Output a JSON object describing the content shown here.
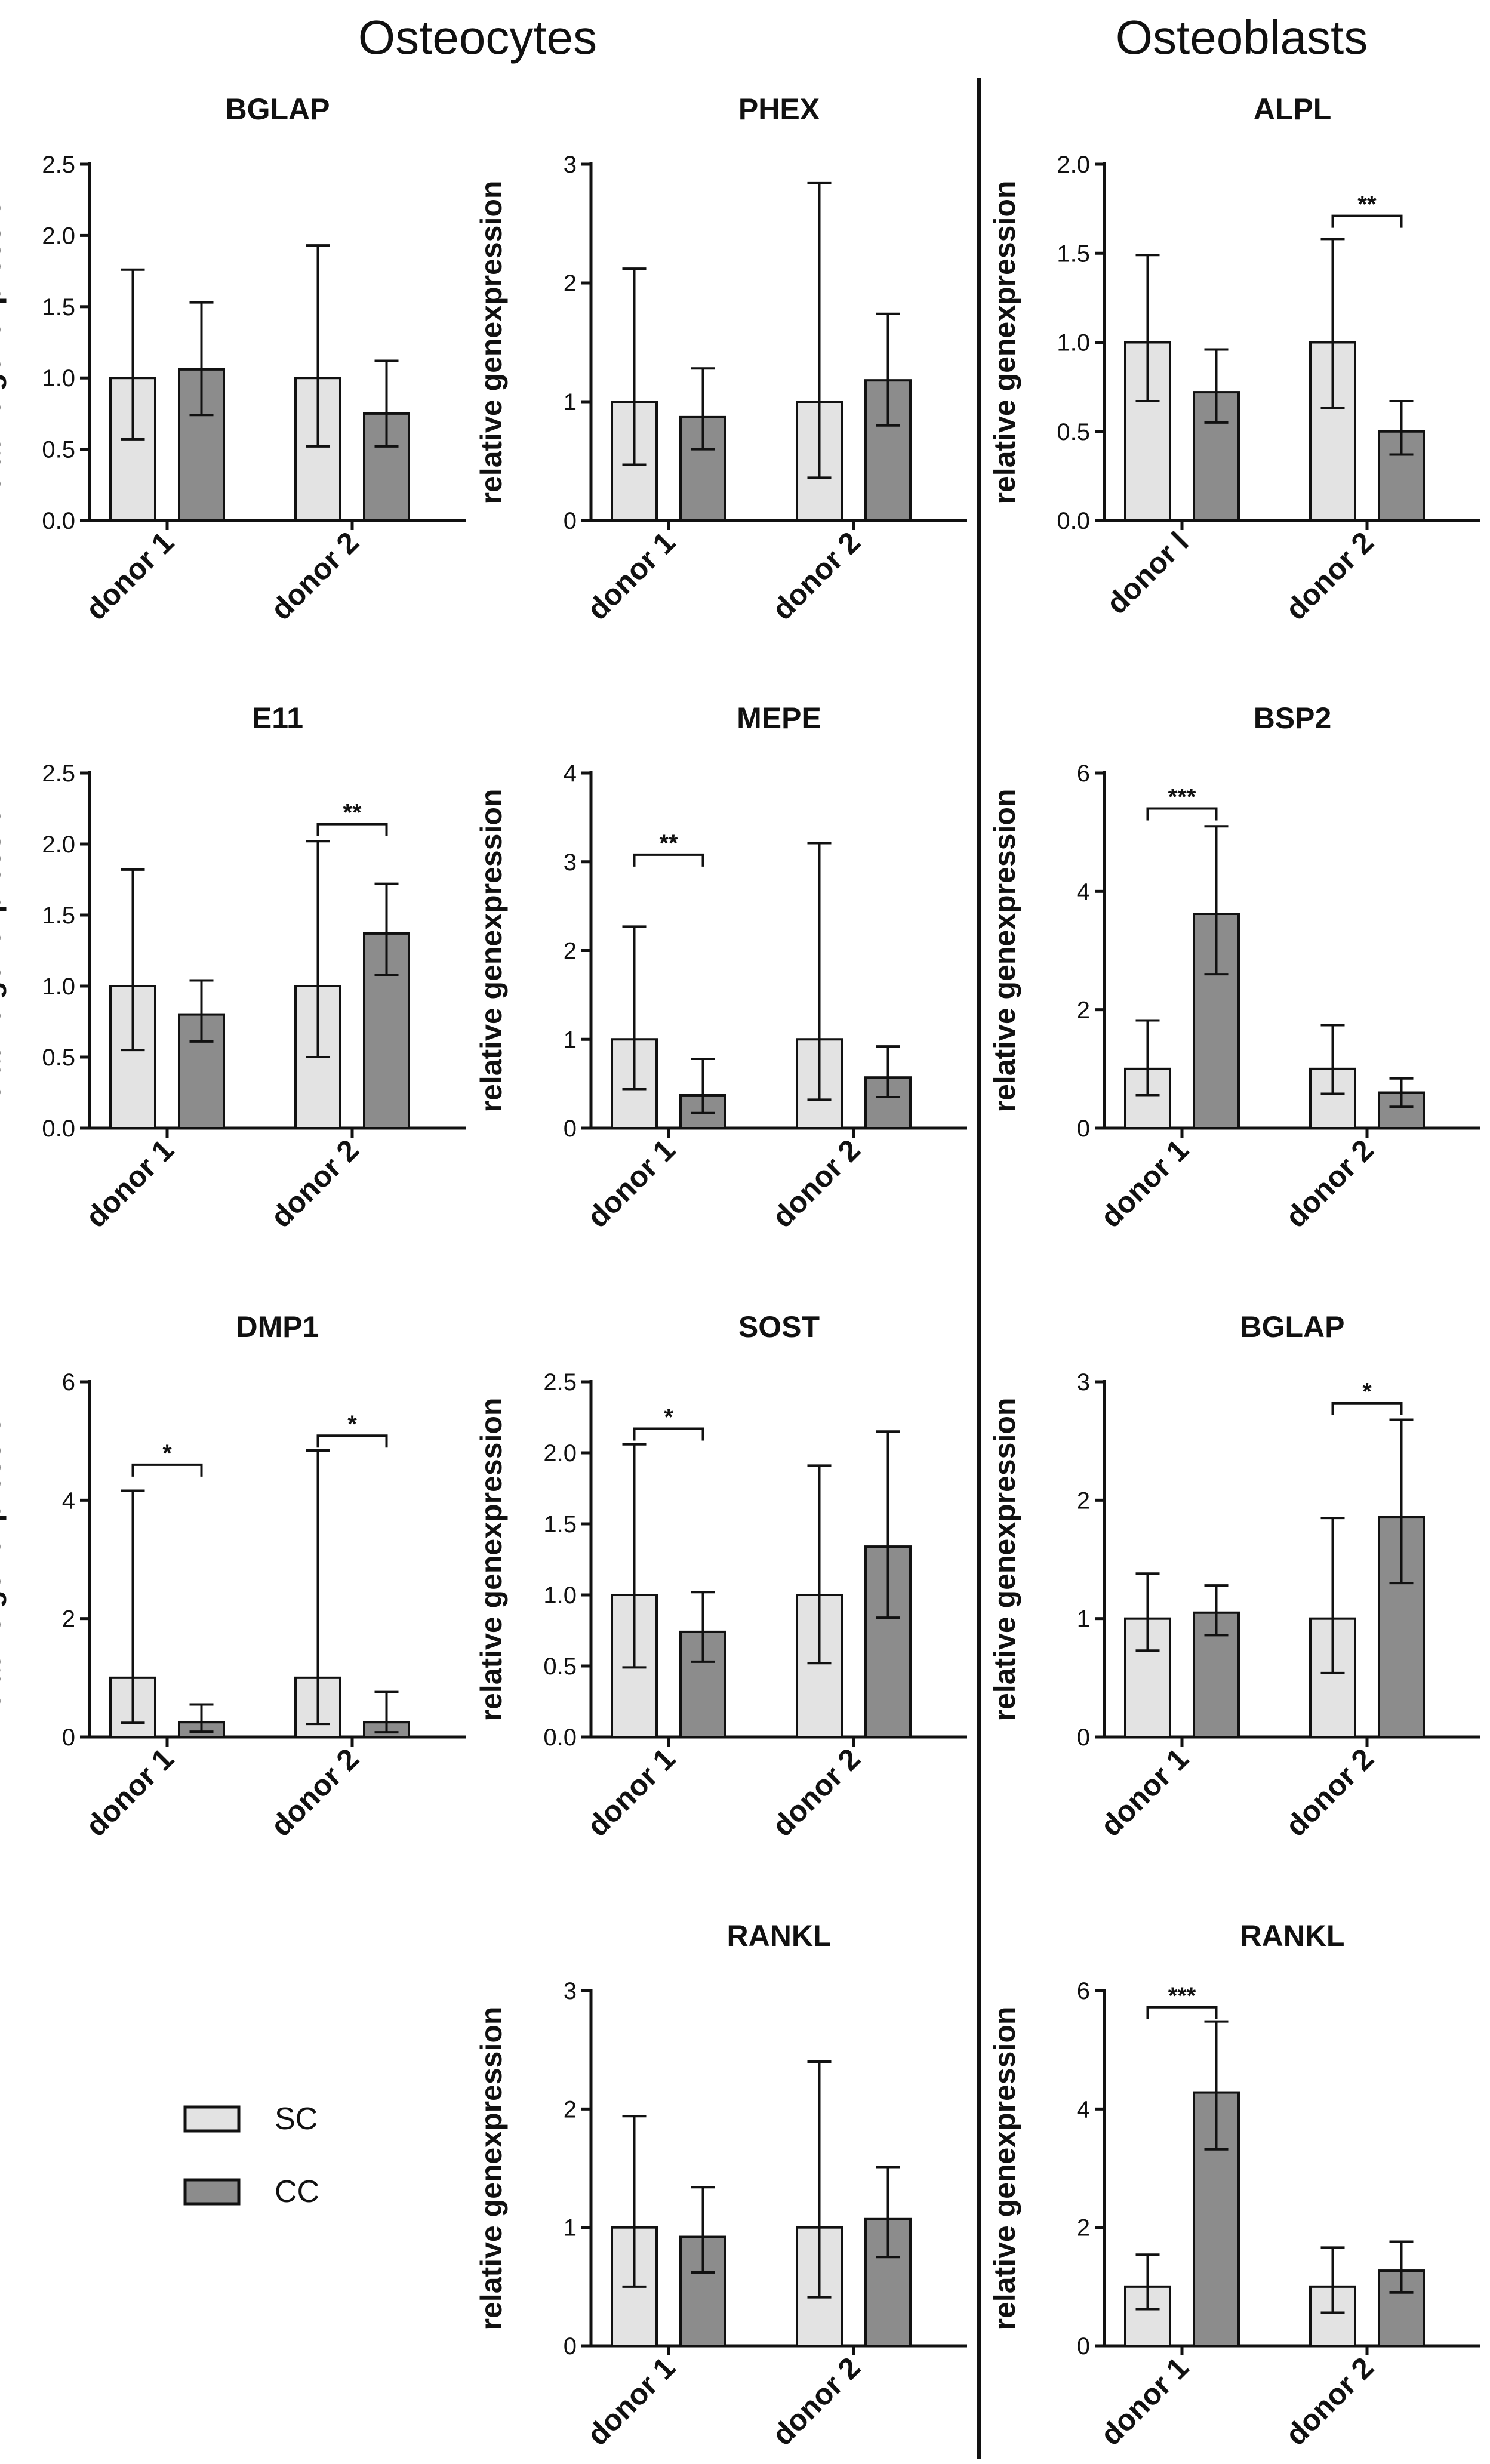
{
  "sections": {
    "left": "Osteocytes",
    "right": "Osteoblasts"
  },
  "legend": [
    {
      "label": "SC",
      "color": "#e3e3e3"
    },
    {
      "label": "CC",
      "color": "#8c8c8c"
    }
  ],
  "colors": {
    "sc": "#e3e3e3",
    "cc": "#8c8c8c",
    "stroke": "#111111"
  },
  "chart_data": [
    {
      "id": "oc-bglap",
      "type": "bar",
      "title": "BGLAP",
      "ylabel": "relative genexpression",
      "categories": [
        "donor 1",
        "donor 2"
      ],
      "ylim": [
        0,
        2.5
      ],
      "yticks": [
        "0.0",
        "0.5",
        "1.0",
        "1.5",
        "2.0",
        "2.5"
      ],
      "series": [
        {
          "name": "SC",
          "values": [
            1.0,
            1.0
          ],
          "err_low": [
            0.57,
            0.52
          ],
          "err_high": [
            1.76,
            1.93
          ]
        },
        {
          "name": "CC",
          "values": [
            1.06,
            0.75
          ],
          "err_low": [
            0.74,
            0.52
          ],
          "err_high": [
            1.53,
            1.12
          ]
        }
      ],
      "significance": []
    },
    {
      "id": "oc-phex",
      "type": "bar",
      "title": "PHEX",
      "ylabel": "relative genexpression",
      "categories": [
        "donor 1",
        "donor 2"
      ],
      "ylim": [
        0,
        3
      ],
      "yticks": [
        "0",
        "1",
        "2",
        "3"
      ],
      "series": [
        {
          "name": "SC",
          "values": [
            1.0,
            1.0
          ],
          "err_low": [
            0.47,
            0.36
          ],
          "err_high": [
            2.12,
            2.84
          ]
        },
        {
          "name": "CC",
          "values": [
            0.87,
            1.18
          ],
          "err_low": [
            0.6,
            0.8
          ],
          "err_high": [
            1.28,
            1.74
          ]
        }
      ],
      "significance": []
    },
    {
      "id": "ob-alpl",
      "type": "bar",
      "title": "ALPL",
      "ylabel": "relative genexpression",
      "categories": [
        "donor l",
        "donor 2"
      ],
      "ylim": [
        0,
        2.0
      ],
      "yticks": [
        "0.0",
        "0.5",
        "1.0",
        "1.5",
        "2.0"
      ],
      "series": [
        {
          "name": "SC",
          "values": [
            1.0,
            1.0
          ],
          "err_low": [
            0.67,
            0.63
          ],
          "err_high": [
            1.49,
            1.58
          ]
        },
        {
          "name": "CC",
          "values": [
            0.72,
            0.5
          ],
          "err_low": [
            0.55,
            0.37
          ],
          "err_high": [
            0.96,
            0.67
          ]
        }
      ],
      "significance": [
        {
          "group": 1,
          "y": 1.71,
          "label": "**"
        }
      ]
    },
    {
      "id": "oc-e11",
      "type": "bar",
      "title": "E11",
      "ylabel": "relative genexpression",
      "categories": [
        "donor 1",
        "donor 2"
      ],
      "ylim": [
        0,
        2.5
      ],
      "yticks": [
        "0.0",
        "0.5",
        "1.0",
        "1.5",
        "2.0",
        "2.5"
      ],
      "series": [
        {
          "name": "SC",
          "values": [
            1.0,
            1.0
          ],
          "err_low": [
            0.55,
            0.5
          ],
          "err_high": [
            1.82,
            2.02
          ]
        },
        {
          "name": "CC",
          "values": [
            0.8,
            1.37
          ],
          "err_low": [
            0.61,
            1.08
          ],
          "err_high": [
            1.04,
            1.72
          ]
        }
      ],
      "significance": [
        {
          "group": 1,
          "y": 2.14,
          "label": "**"
        }
      ]
    },
    {
      "id": "oc-mepe",
      "type": "bar",
      "title": "MEPE",
      "ylabel": "relative genexpression",
      "categories": [
        "donor 1",
        "donor 2"
      ],
      "ylim": [
        0,
        4
      ],
      "yticks": [
        "0",
        "1",
        "2",
        "3",
        "4"
      ],
      "series": [
        {
          "name": "SC",
          "values": [
            1.0,
            1.0
          ],
          "err_low": [
            0.44,
            0.32
          ],
          "err_high": [
            2.27,
            3.21
          ]
        },
        {
          "name": "CC",
          "values": [
            0.37,
            0.57
          ],
          "err_low": [
            0.17,
            0.35
          ],
          "err_high": [
            0.78,
            0.92
          ]
        }
      ],
      "significance": [
        {
          "group": 0,
          "y": 3.08,
          "label": "**"
        }
      ]
    },
    {
      "id": "ob-bsp2",
      "type": "bar",
      "title": "BSP2",
      "ylabel": "relative genexpression",
      "categories": [
        "donor 1",
        "donor 2"
      ],
      "ylim": [
        0,
        6
      ],
      "yticks": [
        "0",
        "2",
        "4",
        "6"
      ],
      "series": [
        {
          "name": "SC",
          "values": [
            1.0,
            1.0
          ],
          "err_low": [
            0.56,
            0.58
          ],
          "err_high": [
            1.82,
            1.74
          ]
        },
        {
          "name": "CC",
          "values": [
            3.62,
            0.6
          ],
          "err_low": [
            2.6,
            0.36
          ],
          "err_high": [
            5.1,
            0.84
          ]
        }
      ],
      "significance": [
        {
          "group": 0,
          "y": 5.4,
          "label": "***"
        }
      ]
    },
    {
      "id": "oc-dmp1",
      "type": "bar",
      "title": "DMP1",
      "ylabel": "relative genexpression",
      "categories": [
        "donor 1",
        "donor 2"
      ],
      "ylim": [
        0,
        6
      ],
      "yticks": [
        "0",
        "2",
        "4",
        "6"
      ],
      "series": [
        {
          "name": "SC",
          "values": [
            1.0,
            1.0
          ],
          "err_low": [
            0.24,
            0.22
          ],
          "err_high": [
            4.16,
            4.84
          ]
        },
        {
          "name": "CC",
          "values": [
            0.25,
            0.25
          ],
          "err_low": [
            0.09,
            0.08
          ],
          "err_high": [
            0.55,
            0.76
          ]
        }
      ],
      "significance": [
        {
          "group": 0,
          "y": 4.6,
          "label": "*"
        },
        {
          "group": 1,
          "y": 5.09,
          "label": "*"
        }
      ]
    },
    {
      "id": "oc-sost",
      "type": "bar",
      "title": "SOST",
      "ylabel": "relative genexpression",
      "categories": [
        "donor 1",
        "donor 2"
      ],
      "ylim": [
        0,
        2.5
      ],
      "yticks": [
        "0.0",
        "0.5",
        "1.0",
        "1.5",
        "2.0",
        "2.5"
      ],
      "series": [
        {
          "name": "SC",
          "values": [
            1.0,
            1.0
          ],
          "err_low": [
            0.49,
            0.52
          ],
          "err_high": [
            2.06,
            1.91
          ]
        },
        {
          "name": "CC",
          "values": [
            0.74,
            1.34
          ],
          "err_low": [
            0.53,
            0.84
          ],
          "err_high": [
            1.02,
            2.15
          ]
        }
      ],
      "significance": [
        {
          "group": 0,
          "y": 2.17,
          "label": "*"
        }
      ]
    },
    {
      "id": "ob-bglap",
      "type": "bar",
      "title": "BGLAP",
      "ylabel": "relative genexpression",
      "categories": [
        "donor 1",
        "donor 2"
      ],
      "ylim": [
        0,
        3
      ],
      "yticks": [
        "0",
        "1",
        "2",
        "3"
      ],
      "series": [
        {
          "name": "SC",
          "values": [
            1.0,
            1.0
          ],
          "err_low": [
            0.73,
            0.54
          ],
          "err_high": [
            1.38,
            1.85
          ]
        },
        {
          "name": "CC",
          "values": [
            1.05,
            1.86
          ],
          "err_low": [
            0.86,
            1.3
          ],
          "err_high": [
            1.28,
            2.68
          ]
        }
      ],
      "significance": [
        {
          "group": 1,
          "y": 2.82,
          "label": "*"
        }
      ]
    },
    {
      "id": "oc-rankl",
      "type": "bar",
      "title": "RANKL",
      "ylabel": "relative genexpression",
      "categories": [
        "donor 1",
        "donor 2"
      ],
      "ylim": [
        0,
        3
      ],
      "yticks": [
        "0",
        "1",
        "2",
        "3"
      ],
      "series": [
        {
          "name": "SC",
          "values": [
            1.0,
            1.0
          ],
          "err_low": [
            0.5,
            0.41
          ],
          "err_high": [
            1.94,
            2.4
          ]
        },
        {
          "name": "CC",
          "values": [
            0.92,
            1.07
          ],
          "err_low": [
            0.62,
            0.75
          ],
          "err_high": [
            1.34,
            1.51
          ]
        }
      ],
      "significance": []
    },
    {
      "id": "ob-rankl",
      "type": "bar",
      "title": "RANKL",
      "ylabel": "relative genexpression",
      "categories": [
        "donor 1",
        "donor 2"
      ],
      "ylim": [
        0,
        6
      ],
      "yticks": [
        "0",
        "2",
        "4",
        "6"
      ],
      "series": [
        {
          "name": "SC",
          "values": [
            1.0,
            1.0
          ],
          "err_low": [
            0.62,
            0.56
          ],
          "err_high": [
            1.54,
            1.66
          ]
        },
        {
          "name": "CC",
          "values": [
            4.28,
            1.27
          ],
          "err_low": [
            3.32,
            0.9
          ],
          "err_high": [
            5.48,
            1.76
          ]
        }
      ],
      "significance": [
        {
          "group": 0,
          "y": 5.72,
          "label": "***"
        }
      ]
    }
  ]
}
